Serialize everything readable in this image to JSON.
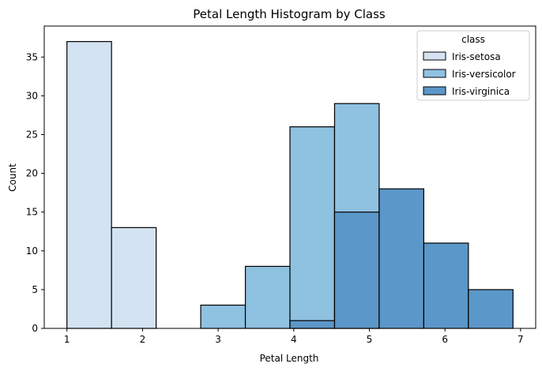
{
  "chart_data": {
    "type": "bar",
    "title": "Petal Length Histogram by Class",
    "xlabel": "Petal Length",
    "ylabel": "Count",
    "xlim": [
      0.7,
      7.2
    ],
    "ylim": [
      0,
      39
    ],
    "x_ticks": [
      1,
      2,
      3,
      4,
      5,
      6,
      7
    ],
    "y_ticks": [
      0,
      5,
      10,
      15,
      20,
      25,
      30,
      35
    ],
    "bin_edges": [
      1.0,
      1.59,
      2.18,
      2.77,
      3.36,
      3.95,
      4.54,
      5.13,
      5.72,
      6.31,
      6.9
    ],
    "series": [
      {
        "name": "Iris-setosa",
        "color": "#d4e3f2",
        "values": [
          37,
          13,
          0,
          0,
          0,
          0,
          0,
          0,
          0,
          0
        ]
      },
      {
        "name": "Iris-versicolor",
        "color": "#8fc1e1",
        "values": [
          0,
          0,
          0,
          3,
          8,
          26,
          29,
          0,
          0,
          0
        ]
      },
      {
        "name": "Iris-virginica",
        "color": "#5b97c8",
        "values": [
          0,
          0,
          0,
          0,
          0,
          1,
          15,
          18,
          11,
          5
        ]
      }
    ],
    "legend": {
      "title": "class",
      "placement": "top-right"
    },
    "grid": false
  }
}
